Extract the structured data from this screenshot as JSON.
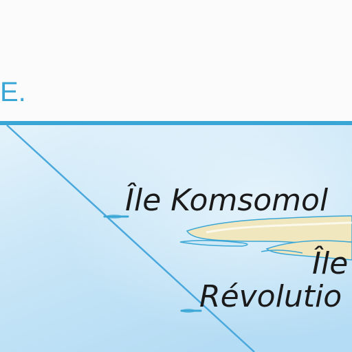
{
  "header": {
    "text": "E."
  },
  "labels": {
    "komsomolets": "Île Komsomol",
    "revolution_line1": "Île",
    "revolution_line2": "Révolutio"
  },
  "colors": {
    "header_bg": "#fbfbfb",
    "header_text": "#3aa6d6",
    "border": "#3aa6d6",
    "sea_light": "#e4f3fb",
    "sea_dark": "#b4dcf4",
    "land": "#f1e7bf",
    "coast": "#3aa6d6",
    "label_text": "#1a1a1a"
  }
}
